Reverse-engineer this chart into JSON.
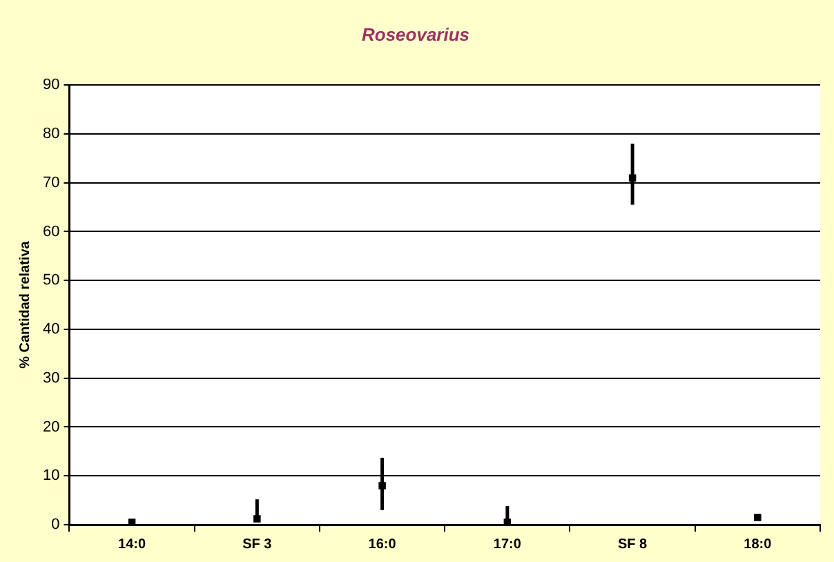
{
  "chart_data": {
    "type": "scatter",
    "title": "Roseovarius",
    "ylabel": "% Cantidad relativa",
    "categories": [
      "14:0",
      "SF 3",
      "16:0",
      "17:0",
      "SF 8",
      "18:0"
    ],
    "values": [
      0.5,
      1.2,
      8,
      0.5,
      71,
      1.5
    ],
    "errors": [
      null,
      [
        1.2,
        5.2
      ],
      [
        3,
        13.7
      ],
      [
        0.5,
        3.8
      ],
      [
        65.5,
        78
      ],
      null
    ],
    "color": "#000000",
    "marker": "square",
    "ylim": [
      0,
      90
    ],
    "yticks": [
      0,
      10,
      20,
      30,
      40,
      50,
      60,
      70,
      80,
      90
    ],
    "grid": "y",
    "legend": false
  }
}
